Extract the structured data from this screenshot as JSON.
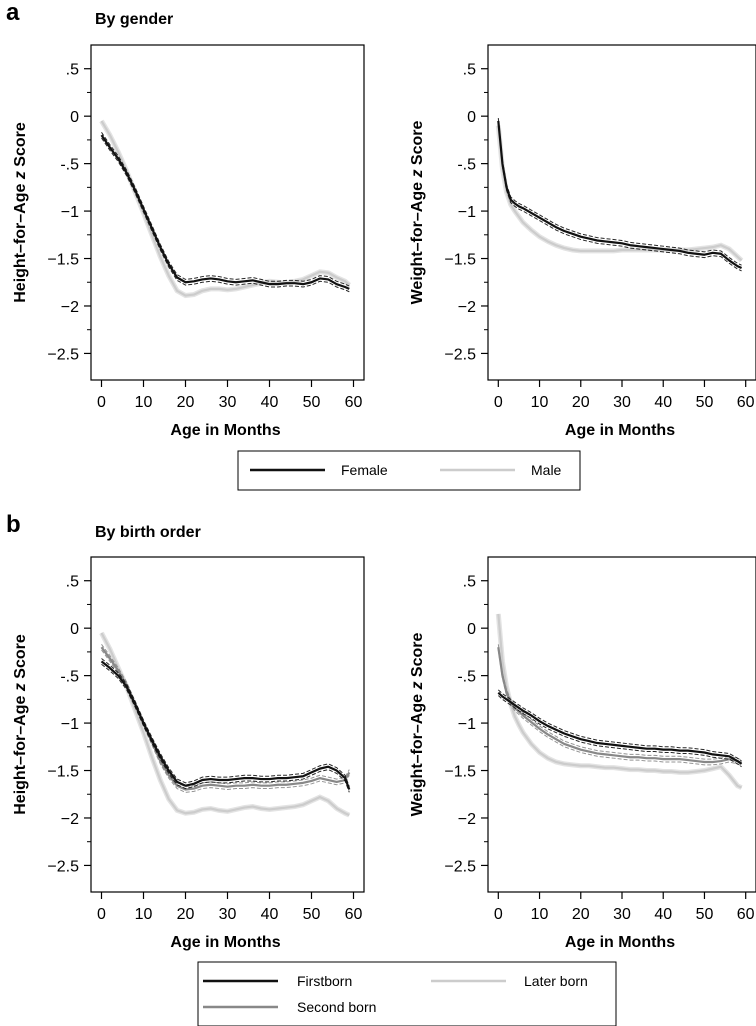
{
  "panels": [
    {
      "letter": "a",
      "title": "By gender"
    },
    {
      "letter": "b",
      "title": "By birth order"
    }
  ],
  "legends": [
    [
      {
        "label": "Female",
        "color": "#111111"
      },
      {
        "label": "Male",
        "color": "#cccccc"
      }
    ],
    [
      {
        "label": "Firstborn",
        "color": "#111111"
      },
      {
        "label": "Later born",
        "color": "#cccccc"
      },
      {
        "label": "Second born",
        "color": "#888888"
      }
    ]
  ],
  "chart_data": [
    {
      "type": "line",
      "panel": "a",
      "xlabel": "Age in Months",
      "ylabel": "Height–for–Age z Score",
      "ylabel_parts": [
        "Height–for–Age ",
        "z",
        " Score"
      ],
      "xlim": [
        0,
        60
      ],
      "ylim": [
        -2.5,
        0.5
      ],
      "xticks": [
        "0",
        "10",
        "20",
        "30",
        "40",
        "50",
        "60"
      ],
      "yticks": [
        ".5",
        "0",
        "-.5",
        "−1",
        "−1.5",
        "−2",
        "−2.5"
      ],
      "grid": false,
      "series": [
        {
          "name": "Female",
          "color": "#111111",
          "ci": true,
          "x": [
            0,
            2,
            4,
            6,
            8,
            10,
            12,
            14,
            16,
            18,
            20,
            22,
            24,
            26,
            28,
            30,
            32,
            34,
            36,
            38,
            40,
            42,
            44,
            46,
            48,
            50,
            52,
            54,
            56,
            58,
            59
          ],
          "y": [
            -0.2,
            -0.33,
            -0.45,
            -0.6,
            -0.78,
            -0.98,
            -1.18,
            -1.38,
            -1.56,
            -1.7,
            -1.75,
            -1.74,
            -1.72,
            -1.71,
            -1.72,
            -1.74,
            -1.75,
            -1.74,
            -1.73,
            -1.75,
            -1.77,
            -1.77,
            -1.76,
            -1.76,
            -1.77,
            -1.75,
            -1.71,
            -1.72,
            -1.77,
            -1.8,
            -1.82
          ]
        },
        {
          "name": "Male",
          "color": "#cccccc",
          "ci": false,
          "x": [
            0,
            2,
            4,
            6,
            8,
            10,
            12,
            14,
            16,
            18,
            20,
            22,
            24,
            26,
            28,
            30,
            32,
            34,
            36,
            38,
            40,
            42,
            44,
            46,
            48,
            50,
            52,
            54,
            56,
            58,
            59
          ],
          "y": [
            -0.05,
            -0.2,
            -0.38,
            -0.58,
            -0.8,
            -1.02,
            -1.25,
            -1.48,
            -1.68,
            -1.84,
            -1.89,
            -1.88,
            -1.84,
            -1.82,
            -1.82,
            -1.83,
            -1.82,
            -1.8,
            -1.78,
            -1.76,
            -1.74,
            -1.75,
            -1.76,
            -1.74,
            -1.72,
            -1.68,
            -1.64,
            -1.65,
            -1.7,
            -1.74,
            -1.78
          ]
        }
      ]
    },
    {
      "type": "line",
      "panel": "a",
      "xlabel": "Age in Months",
      "ylabel": "Weight–for–Age z Score",
      "ylabel_parts": [
        "Weight–for–Age ",
        "z",
        " Score"
      ],
      "xlim": [
        0,
        60
      ],
      "ylim": [
        -2.5,
        0.5
      ],
      "xticks": [
        "0",
        "10",
        "20",
        "30",
        "40",
        "50",
        "60"
      ],
      "yticks": [
        ".5",
        "0",
        "-.5",
        "−1",
        "−1.5",
        "−2",
        "−2.5"
      ],
      "grid": false,
      "series": [
        {
          "name": "Female",
          "color": "#111111",
          "ci": true,
          "x": [
            0,
            1,
            2,
            3,
            4,
            5,
            6,
            8,
            10,
            12,
            14,
            16,
            18,
            20,
            22,
            24,
            26,
            28,
            30,
            32,
            34,
            36,
            38,
            40,
            42,
            44,
            46,
            48,
            50,
            52,
            54,
            56,
            58,
            59
          ],
          "y": [
            -0.05,
            -0.5,
            -0.75,
            -0.88,
            -0.92,
            -0.95,
            -0.97,
            -1.02,
            -1.07,
            -1.12,
            -1.17,
            -1.21,
            -1.24,
            -1.27,
            -1.29,
            -1.31,
            -1.32,
            -1.33,
            -1.34,
            -1.36,
            -1.37,
            -1.38,
            -1.39,
            -1.4,
            -1.41,
            -1.42,
            -1.44,
            -1.45,
            -1.46,
            -1.44,
            -1.45,
            -1.52,
            -1.58,
            -1.6
          ]
        },
        {
          "name": "Male",
          "color": "#cccccc",
          "ci": false,
          "x": [
            0,
            1,
            2,
            3,
            4,
            5,
            6,
            8,
            10,
            12,
            14,
            16,
            18,
            20,
            22,
            24,
            26,
            28,
            30,
            32,
            34,
            36,
            38,
            40,
            42,
            44,
            46,
            48,
            50,
            52,
            54,
            56,
            58,
            59
          ],
          "y": [
            -0.1,
            -0.55,
            -0.8,
            -0.93,
            -1.0,
            -1.06,
            -1.12,
            -1.2,
            -1.27,
            -1.32,
            -1.36,
            -1.39,
            -1.41,
            -1.42,
            -1.42,
            -1.42,
            -1.42,
            -1.42,
            -1.41,
            -1.41,
            -1.41,
            -1.41,
            -1.41,
            -1.41,
            -1.41,
            -1.41,
            -1.41,
            -1.4,
            -1.39,
            -1.38,
            -1.36,
            -1.4,
            -1.48,
            -1.52
          ]
        }
      ]
    },
    {
      "type": "line",
      "panel": "b",
      "xlabel": "Age in Months",
      "ylabel": "Height–for–Age z Score",
      "ylabel_parts": [
        "Height–for–Age ",
        "z",
        " Score"
      ],
      "xlim": [
        0,
        60
      ],
      "ylim": [
        -2.5,
        0.5
      ],
      "xticks": [
        "0",
        "10",
        "20",
        "30",
        "40",
        "50",
        "60"
      ],
      "yticks": [
        ".5",
        "0",
        "-.5",
        "−1",
        "−1.5",
        "−2",
        "−2.5"
      ],
      "grid": false,
      "series": [
        {
          "name": "Firstborn",
          "color": "#111111",
          "ci": true,
          "x": [
            0,
            2,
            4,
            6,
            8,
            10,
            12,
            14,
            16,
            18,
            20,
            22,
            24,
            26,
            28,
            30,
            32,
            34,
            36,
            38,
            40,
            42,
            44,
            46,
            48,
            50,
            52,
            54,
            56,
            58,
            59
          ],
          "y": [
            -0.35,
            -0.42,
            -0.5,
            -0.62,
            -0.8,
            -1.0,
            -1.18,
            -1.35,
            -1.5,
            -1.62,
            -1.66,
            -1.64,
            -1.6,
            -1.59,
            -1.6,
            -1.6,
            -1.59,
            -1.58,
            -1.58,
            -1.59,
            -1.59,
            -1.58,
            -1.58,
            -1.57,
            -1.56,
            -1.52,
            -1.48,
            -1.46,
            -1.5,
            -1.58,
            -1.7
          ]
        },
        {
          "name": "Second born",
          "color": "#888888",
          "ci": true,
          "x": [
            0,
            2,
            4,
            6,
            8,
            10,
            12,
            14,
            16,
            18,
            20,
            22,
            24,
            26,
            28,
            30,
            32,
            34,
            36,
            38,
            40,
            42,
            44,
            46,
            48,
            50,
            52,
            54,
            56,
            58,
            59
          ],
          "y": [
            -0.2,
            -0.32,
            -0.45,
            -0.6,
            -0.8,
            -1.0,
            -1.2,
            -1.4,
            -1.55,
            -1.66,
            -1.7,
            -1.69,
            -1.66,
            -1.65,
            -1.66,
            -1.67,
            -1.66,
            -1.66,
            -1.65,
            -1.66,
            -1.66,
            -1.65,
            -1.65,
            -1.64,
            -1.63,
            -1.61,
            -1.58,
            -1.6,
            -1.62,
            -1.6,
            -1.52
          ]
        },
        {
          "name": "Later born",
          "color": "#cccccc",
          "ci": false,
          "x": [
            0,
            2,
            4,
            6,
            8,
            10,
            12,
            14,
            16,
            18,
            20,
            22,
            24,
            26,
            28,
            30,
            32,
            34,
            36,
            38,
            40,
            42,
            44,
            46,
            48,
            50,
            52,
            54,
            56,
            58,
            59
          ],
          "y": [
            -0.05,
            -0.22,
            -0.42,
            -0.62,
            -0.86,
            -1.1,
            -1.36,
            -1.6,
            -1.8,
            -1.92,
            -1.95,
            -1.94,
            -1.91,
            -1.9,
            -1.92,
            -1.93,
            -1.91,
            -1.89,
            -1.88,
            -1.9,
            -1.91,
            -1.9,
            -1.89,
            -1.88,
            -1.86,
            -1.82,
            -1.78,
            -1.82,
            -1.9,
            -1.95,
            -1.97
          ]
        }
      ]
    },
    {
      "type": "line",
      "panel": "b",
      "xlabel": "Age in Months",
      "ylabel": "Weight–for–Age z Score",
      "ylabel_parts": [
        "Weight–for–Age ",
        "z",
        " Score"
      ],
      "xlim": [
        0,
        60
      ],
      "ylim": [
        -2.5,
        0.5
      ],
      "xticks": [
        "0",
        "10",
        "20",
        "30",
        "40",
        "50",
        "60"
      ],
      "yticks": [
        ".5",
        "0",
        "-.5",
        "−1",
        "−1.5",
        "−2",
        "−2.5"
      ],
      "grid": false,
      "series": [
        {
          "name": "Firstborn",
          "color": "#111111",
          "ci": true,
          "x": [
            0,
            1,
            2,
            3,
            4,
            5,
            6,
            8,
            10,
            12,
            14,
            16,
            18,
            20,
            22,
            24,
            26,
            28,
            30,
            32,
            34,
            36,
            38,
            40,
            42,
            44,
            46,
            48,
            50,
            52,
            54,
            56,
            58,
            59
          ],
          "y": [
            -0.68,
            -0.72,
            -0.75,
            -0.78,
            -0.81,
            -0.84,
            -0.87,
            -0.92,
            -0.98,
            -1.03,
            -1.07,
            -1.11,
            -1.14,
            -1.17,
            -1.19,
            -1.21,
            -1.22,
            -1.23,
            -1.24,
            -1.25,
            -1.26,
            -1.27,
            -1.27,
            -1.28,
            -1.28,
            -1.29,
            -1.29,
            -1.3,
            -1.31,
            -1.33,
            -1.34,
            -1.35,
            -1.4,
            -1.43
          ]
        },
        {
          "name": "Second born",
          "color": "#888888",
          "ci": true,
          "x": [
            0,
            1,
            2,
            3,
            4,
            5,
            6,
            8,
            10,
            12,
            14,
            16,
            18,
            20,
            22,
            24,
            26,
            28,
            30,
            32,
            34,
            36,
            38,
            40,
            42,
            44,
            46,
            48,
            50,
            52,
            54,
            56,
            58,
            59
          ],
          "y": [
            -0.2,
            -0.5,
            -0.68,
            -0.78,
            -0.84,
            -0.88,
            -0.92,
            -0.99,
            -1.06,
            -1.12,
            -1.17,
            -1.22,
            -1.25,
            -1.28,
            -1.3,
            -1.32,
            -1.33,
            -1.34,
            -1.35,
            -1.36,
            -1.36,
            -1.37,
            -1.37,
            -1.38,
            -1.38,
            -1.38,
            -1.39,
            -1.4,
            -1.41,
            -1.41,
            -1.4,
            -1.38,
            -1.4,
            -1.42
          ]
        },
        {
          "name": "Later born",
          "color": "#cccccc",
          "ci": false,
          "x": [
            0,
            1,
            2,
            3,
            4,
            5,
            6,
            8,
            10,
            12,
            14,
            16,
            18,
            20,
            22,
            24,
            26,
            28,
            30,
            32,
            34,
            36,
            38,
            40,
            42,
            44,
            46,
            48,
            50,
            52,
            54,
            56,
            58,
            59
          ],
          "y": [
            0.15,
            -0.35,
            -0.62,
            -0.8,
            -0.93,
            -1.02,
            -1.1,
            -1.22,
            -1.31,
            -1.37,
            -1.41,
            -1.43,
            -1.44,
            -1.45,
            -1.45,
            -1.46,
            -1.47,
            -1.47,
            -1.48,
            -1.49,
            -1.49,
            -1.5,
            -1.5,
            -1.51,
            -1.51,
            -1.52,
            -1.52,
            -1.51,
            -1.5,
            -1.48,
            -1.46,
            -1.55,
            -1.66,
            -1.68
          ]
        }
      ]
    }
  ]
}
